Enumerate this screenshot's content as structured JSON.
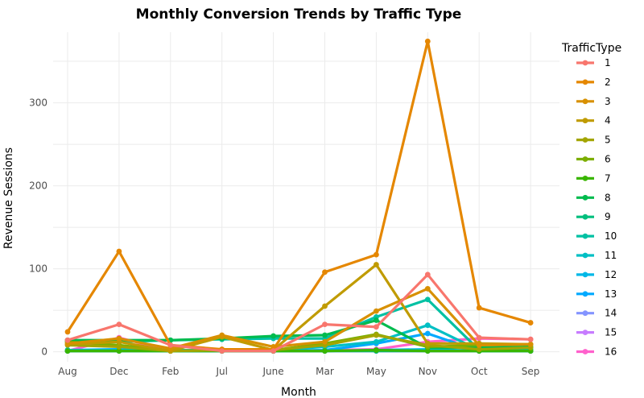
{
  "chart_data": {
    "type": "line",
    "title": "Monthly Conversion Trends by Traffic Type",
    "xlabel": "Month",
    "ylabel": "Revenue Sessions",
    "categories": [
      "Aug",
      "Dec",
      "Feb",
      "Jul",
      "June",
      "Mar",
      "May",
      "Nov",
      "Oct",
      "Sep"
    ],
    "ylim": [
      -12,
      385
    ],
    "yticks": [
      0,
      100,
      200,
      300
    ],
    "grid": true,
    "legend_title": "TrafficType",
    "legend_position": "right",
    "series": [
      {
        "name": "1",
        "color": "#F8766D",
        "values": [
          14,
          33,
          8,
          1,
          1,
          33,
          30,
          93,
          17,
          15
        ]
      },
      {
        "name": "2",
        "color": "#E58700",
        "values": [
          24,
          121,
          8,
          3,
          3,
          96,
          117,
          374,
          53,
          35
        ]
      },
      {
        "name": "3",
        "color": "#D89000",
        "values": [
          10,
          16,
          4,
          20,
          6,
          12,
          49,
          76,
          8,
          9
        ]
      },
      {
        "name": "4",
        "color": "#C09B00",
        "values": [
          9,
          12,
          1,
          18,
          2,
          55,
          105,
          10,
          10,
          9
        ]
      },
      {
        "name": "5",
        "color": "#A3A500",
        "values": [
          8,
          6,
          1,
          2,
          2,
          8,
          20,
          8,
          3,
          5
        ]
      },
      {
        "name": "6",
        "color": "#7CAE00",
        "values": [
          12,
          8,
          1,
          2,
          2,
          10,
          21,
          6,
          8,
          9
        ]
      },
      {
        "name": "7",
        "color": "#39B600",
        "values": [
          1,
          1,
          1,
          1,
          1,
          1,
          2,
          1,
          1,
          1
        ]
      },
      {
        "name": "8",
        "color": "#00BB4E",
        "values": [
          14,
          14,
          14,
          16,
          19,
          20,
          38,
          5,
          5,
          6
        ]
      },
      {
        "name": "9",
        "color": "#00BF7D",
        "values": [
          1,
          1,
          1,
          1,
          1,
          1,
          1,
          1,
          1,
          1
        ]
      },
      {
        "name": "10",
        "color": "#00C1A3",
        "values": [
          12,
          12,
          14,
          15,
          16,
          16,
          42,
          63,
          2,
          3
        ]
      },
      {
        "name": "11",
        "color": "#00BFC4",
        "values": [
          2,
          2,
          2,
          2,
          2,
          6,
          12,
          32,
          2,
          2
        ]
      },
      {
        "name": "12",
        "color": "#00B8E7",
        "values": [
          1,
          1,
          1,
          1,
          1,
          1,
          2,
          3,
          1,
          1
        ]
      },
      {
        "name": "13",
        "color": "#00A9FF",
        "values": [
          2,
          3,
          1,
          1,
          1,
          2,
          10,
          22,
          1,
          1
        ]
      },
      {
        "name": "14",
        "color": "#8494FF",
        "values": [
          1,
          1,
          1,
          1,
          1,
          1,
          1,
          1,
          1,
          1
        ]
      },
      {
        "name": "15",
        "color": "#C77CFF",
        "values": [
          1,
          1,
          1,
          1,
          1,
          1,
          1,
          1,
          1,
          1
        ]
      },
      {
        "name": "16",
        "color": "#FF61CC",
        "values": [
          1,
          17,
          1,
          1,
          1,
          2,
          3,
          12,
          16,
          15
        ]
      }
    ]
  }
}
